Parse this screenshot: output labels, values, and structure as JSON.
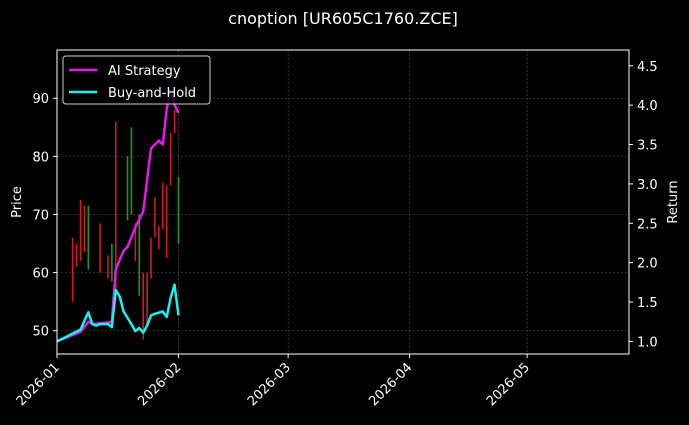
{
  "chart_data": {
    "type": "line",
    "title": "cnoption [UR605C1760.ZCE]",
    "xlabel": "",
    "ylabel": "Price",
    "y2label": "Return",
    "x_axis": {
      "type": "date",
      "range": [
        "2026-01-01",
        "2026-05-27"
      ],
      "ticks": [
        "2026-01",
        "2026-02",
        "2026-03",
        "2026-04",
        "2026-05"
      ]
    },
    "y_axis": {
      "range": [
        46.0,
        98.3
      ],
      "ticks": [
        50,
        60,
        70,
        80,
        90
      ]
    },
    "y2_axis": {
      "range": [
        0.84,
        4.7
      ],
      "ticks": [
        "1.0",
        "1.5",
        "2.0",
        "2.5",
        "3.0",
        "3.5",
        "4.0",
        "4.5"
      ]
    },
    "grid": true,
    "legend": {
      "placement": "top-left",
      "entries": [
        "AI Strategy",
        "Buy-and-Hold"
      ]
    },
    "colors": {
      "background": "#000000",
      "ai_strategy": "#e619e6",
      "buy_and_hold": "#19f0f0",
      "candle_up": "#1a9a1a",
      "candle_down": "#d11a1a",
      "grid": "#555555",
      "text": "#ffffff"
    },
    "candles": [
      {
        "date": "2026-01-05",
        "high": 66,
        "low": 55,
        "dir": "down"
      },
      {
        "date": "2026-01-06",
        "high": 65,
        "low": 61,
        "dir": "down"
      },
      {
        "date": "2026-01-07",
        "high": 72.5,
        "low": 62,
        "dir": "down"
      },
      {
        "date": "2026-01-08",
        "high": 71.5,
        "low": 63.5,
        "dir": "down"
      },
      {
        "date": "2026-01-09",
        "high": 71.5,
        "low": 60.5,
        "dir": "up"
      },
      {
        "date": "2026-01-12",
        "high": 68.5,
        "low": 60,
        "dir": "down"
      },
      {
        "date": "2026-01-14",
        "high": 63,
        "low": 59,
        "dir": "down"
      },
      {
        "date": "2026-01-15",
        "high": 65,
        "low": 58.5,
        "dir": "up"
      },
      {
        "date": "2026-01-16",
        "high": 86,
        "low": 57,
        "dir": "down"
      },
      {
        "date": "2026-01-19",
        "high": 80,
        "low": 69,
        "dir": "up"
      },
      {
        "date": "2026-01-20",
        "high": 85,
        "low": 70,
        "dir": "up"
      },
      {
        "date": "2026-01-21",
        "high": 68.5,
        "low": 62,
        "dir": "down"
      },
      {
        "date": "2026-01-22",
        "high": 70,
        "low": 56,
        "dir": "up"
      },
      {
        "date": "2026-01-23",
        "high": 60,
        "low": 48.5,
        "dir": "down"
      },
      {
        "date": "2026-01-24",
        "high": 60,
        "low": 51,
        "dir": "down"
      },
      {
        "date": "2026-01-25",
        "high": 66,
        "low": 59,
        "dir": "down"
      },
      {
        "date": "2026-01-26",
        "high": 73,
        "low": 66,
        "dir": "down"
      },
      {
        "date": "2026-01-27",
        "high": 68,
        "low": 64,
        "dir": "down"
      },
      {
        "date": "2026-01-28",
        "high": 75.5,
        "low": 67.5,
        "dir": "down"
      },
      {
        "date": "2026-01-29",
        "high": 75,
        "low": 62.5,
        "dir": "down"
      },
      {
        "date": "2026-01-30",
        "high": 84,
        "low": 75,
        "dir": "down"
      },
      {
        "date": "2026-01-31",
        "high": 88,
        "low": 84,
        "dir": "down"
      },
      {
        "date": "2026-02-01",
        "high": 76.5,
        "low": 65,
        "dir": "up"
      }
    ],
    "series": [
      {
        "name": "AI Strategy",
        "axis": "y2",
        "points": [
          [
            "2026-01-01",
            1.0
          ],
          [
            "2026-01-03",
            1.04
          ],
          [
            "2026-01-05",
            1.08
          ],
          [
            "2026-01-07",
            1.12
          ],
          [
            "2026-01-09",
            1.25
          ],
          [
            "2026-01-10",
            1.22
          ],
          [
            "2026-01-12",
            1.23
          ],
          [
            "2026-01-14",
            1.24
          ],
          [
            "2026-01-15",
            1.25
          ],
          [
            "2026-01-16",
            1.92
          ],
          [
            "2026-01-18",
            2.15
          ],
          [
            "2026-01-19",
            2.2
          ],
          [
            "2026-01-21",
            2.45
          ],
          [
            "2026-01-23",
            2.65
          ],
          [
            "2026-01-25",
            3.45
          ],
          [
            "2026-01-27",
            3.55
          ],
          [
            "2026-01-28",
            3.5
          ],
          [
            "2026-01-29",
            3.95
          ],
          [
            "2026-01-30",
            4.2
          ],
          [
            "2026-01-31",
            4.0
          ],
          [
            "2026-02-01",
            3.9
          ]
        ]
      },
      {
        "name": "Buy-and-Hold",
        "axis": "y2",
        "points": [
          [
            "2026-01-01",
            1.0
          ],
          [
            "2026-01-03",
            1.05
          ],
          [
            "2026-01-05",
            1.1
          ],
          [
            "2026-01-07",
            1.15
          ],
          [
            "2026-01-09",
            1.37
          ],
          [
            "2026-01-10",
            1.22
          ],
          [
            "2026-01-11",
            1.2
          ],
          [
            "2026-01-12",
            1.22
          ],
          [
            "2026-01-14",
            1.22
          ],
          [
            "2026-01-15",
            1.18
          ],
          [
            "2026-01-16",
            1.65
          ],
          [
            "2026-01-17",
            1.57
          ],
          [
            "2026-01-18",
            1.38
          ],
          [
            "2026-01-20",
            1.22
          ],
          [
            "2026-01-21",
            1.13
          ],
          [
            "2026-01-22",
            1.17
          ],
          [
            "2026-01-23",
            1.11
          ],
          [
            "2026-01-24",
            1.2
          ],
          [
            "2026-01-25",
            1.33
          ],
          [
            "2026-01-26",
            1.35
          ],
          [
            "2026-01-28",
            1.38
          ],
          [
            "2026-01-29",
            1.31
          ],
          [
            "2026-01-30",
            1.55
          ],
          [
            "2026-01-31",
            1.72
          ],
          [
            "2026-02-01",
            1.33
          ]
        ]
      }
    ]
  }
}
